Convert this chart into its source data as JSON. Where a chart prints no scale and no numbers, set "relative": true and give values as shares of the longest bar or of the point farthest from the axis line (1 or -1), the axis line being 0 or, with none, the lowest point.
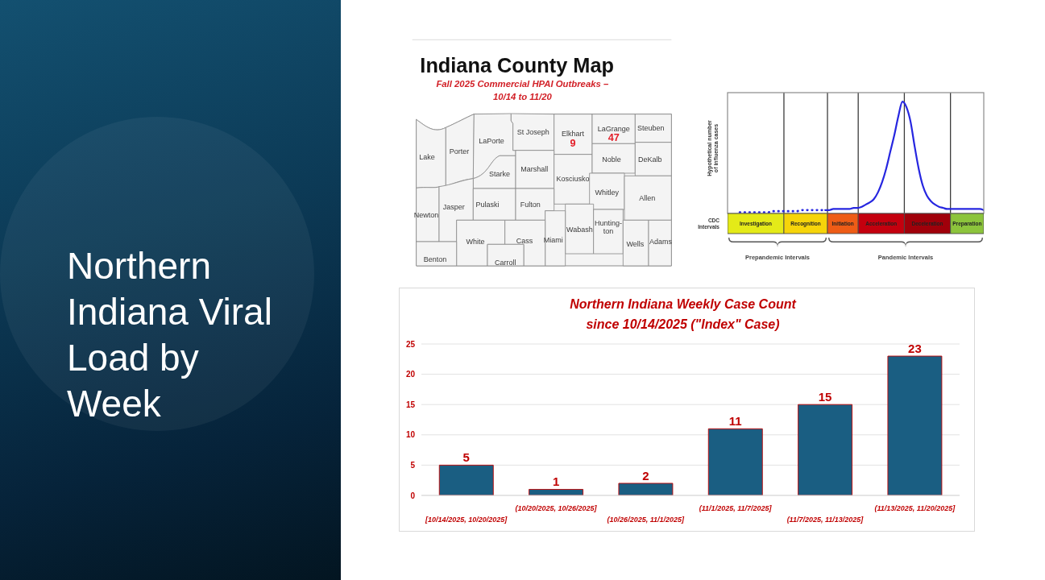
{
  "chart_data": [
    {
      "type": "other",
      "title": "Northern Indiana Viral Load by Week"
    },
    {
      "type": "other",
      "title": "Indiana County Map",
      "subtitle": "Fall 2025 Commercial HPAI Outbreaks –\n10/14 to 11/20",
      "categories": [
        "Lake",
        "Porter",
        "LaPorte",
        "St Joseph",
        "Elkhart",
        "LaGrange",
        "Steuben",
        "Starke",
        "Marshall",
        "Kosciusko",
        "Noble",
        "DeKalb",
        "Whitley",
        "Allen",
        "Newton",
        "Jasper",
        "Pulaski",
        "Fulton",
        "Wabash",
        "Hunting-ton",
        "Miami",
        "Wells",
        "Adams",
        "White",
        "Cass",
        "Benton",
        "Carroll"
      ],
      "values": [
        null,
        null,
        null,
        null,
        9,
        47,
        null,
        null,
        null,
        null,
        null,
        null,
        null,
        null,
        null,
        null,
        null,
        null,
        null,
        null,
        null,
        null,
        null,
        null,
        null,
        null,
        null
      ],
      "color": "#f4f4f4",
      "data_labels": true
    },
    {
      "type": "line",
      "relative": true,
      "grid": "x",
      "ylabel": "Hypothetical number\nof influenza cases",
      "categories": [
        null,
        null,
        null,
        null,
        null,
        null,
        null,
        null,
        null,
        null,
        null,
        null,
        null,
        null,
        null,
        null,
        null,
        null,
        null,
        null,
        null,
        null,
        null,
        null,
        null,
        null,
        null,
        null,
        null,
        null,
        null,
        null,
        null,
        null,
        null,
        null,
        null,
        null,
        null,
        null,
        null,
        null,
        null,
        null,
        null,
        null,
        null,
        null,
        null,
        null,
        null,
        null,
        null,
        null,
        null,
        null,
        null,
        null,
        null,
        null,
        null,
        null,
        null,
        null
      ],
      "series": [
        {
          "color": "#2626e0",
          "line_style": "dotted",
          "values": [
            null,
            null,
            null,
            0.01,
            0.01,
            0.01,
            0.01,
            0.01,
            0.01,
            0.01,
            0.01,
            0.02,
            0.02,
            0.02,
            0.02,
            0.02,
            0.02,
            0.02,
            0.03,
            0.03,
            0.03,
            0.03,
            0.03,
            0.03,
            0.03,
            null,
            null,
            null,
            null,
            null,
            null,
            null,
            null,
            null,
            null,
            null,
            null,
            null,
            null,
            null,
            null,
            null,
            null,
            null,
            null,
            null,
            null,
            null,
            null,
            null,
            null,
            null,
            null,
            null,
            null,
            null,
            null,
            null,
            null,
            null,
            null,
            null,
            null,
            null
          ]
        },
        {
          "color": "#2626e0",
          "values": [
            null,
            null,
            null,
            null,
            null,
            null,
            null,
            null,
            null,
            null,
            null,
            null,
            null,
            null,
            null,
            null,
            null,
            null,
            null,
            null,
            null,
            null,
            null,
            null,
            0.03,
            0.03,
            0.04,
            0.04,
            0.04,
            0.04,
            0.04,
            0.05,
            0.05,
            0.06,
            0.08,
            0.1,
            0.13,
            0.19,
            0.28,
            0.4,
            0.55,
            0.7,
            0.87,
            1,
            0.95,
            0.82,
            0.6,
            0.4,
            0.25,
            0.16,
            0.11,
            0.08,
            0.06,
            0.05,
            0.04,
            0.04,
            0.04,
            0.04,
            0.04,
            0.04,
            0.04,
            0.04,
            0.04,
            0.03
          ]
        }
      ]
    },
    {
      "type": "bar",
      "orientation": "horizontal",
      "stacked": true,
      "relative": true,
      "categories": [
        "CDC Intervals"
      ],
      "series": [
        {
          "name": "Investigation",
          "color": "#e4ea18",
          "values": [
            0.22
          ]
        },
        {
          "name": "Recognition",
          "color": "#f6d40a",
          "values": [
            0.17
          ]
        },
        {
          "name": "Initiation",
          "color": "#ee5c16",
          "values": [
            0.12
          ]
        },
        {
          "name": "Acceleration",
          "color": "#c4000e",
          "values": [
            0.18
          ]
        },
        {
          "name": "Deceleration",
          "color": "#a0000a",
          "values": [
            0.18
          ]
        },
        {
          "name": "Preparation",
          "color": "#8cc43c",
          "values": [
            0.13
          ]
        }
      ],
      "annotations": [
        "Prepandemic Intervals",
        "Pandemic Intervals"
      ]
    },
    {
      "type": "bar",
      "title": "Northern Indiana Weekly Case Count\nsince 10/14/2025 (\"Index\" Case)",
      "categories": [
        "[10/14/2025, 10/20/2025]",
        "(10/20/2025, 10/26/2025]",
        "(10/26/2025, 11/1/2025]",
        "(11/1/2025, 11/7/2025]",
        "(11/7/2025, 11/13/2025]",
        "(11/13/2025, 11/20/2025]"
      ],
      "values": [
        5,
        1,
        2,
        11,
        15,
        23
      ],
      "color": "#1a5e82",
      "ylim": [
        0,
        25
      ],
      "yticks": [
        0,
        5,
        10,
        15,
        20,
        25
      ],
      "grid": "y",
      "data_labels": true
    }
  ]
}
